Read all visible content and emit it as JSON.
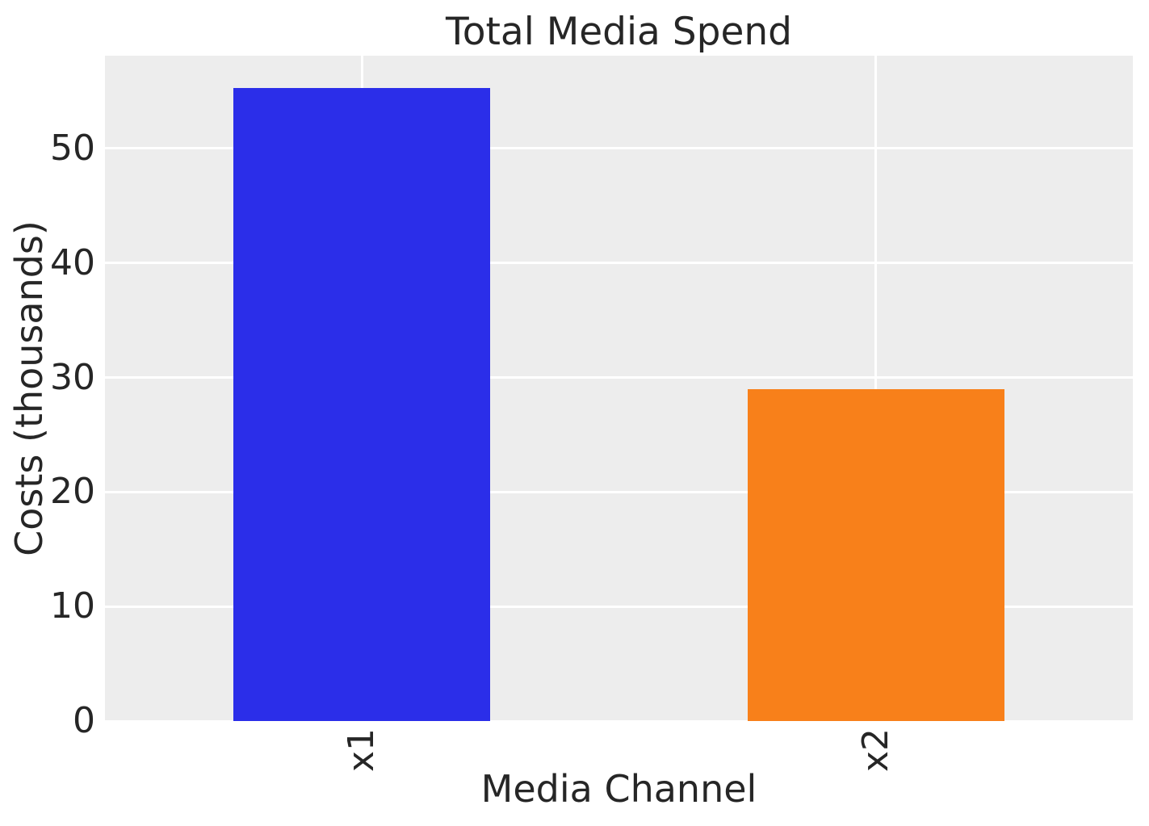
{
  "chart_data": {
    "type": "bar",
    "title": "Total Media Spend",
    "xlabel": "Media Channel",
    "ylabel": "Costs (thousands)",
    "categories": [
      "x1",
      "x2"
    ],
    "values": [
      55.3,
      29.0
    ],
    "ylim": [
      0,
      58.1
    ],
    "yticks": [
      0,
      10,
      20,
      30,
      40,
      50
    ],
    "bar_colors": [
      "#2b2ee9",
      "#f8801a"
    ],
    "xtick_rotation": 90,
    "grid": "on",
    "legend_position": "none",
    "plot_bg_color": "#ededed",
    "grid_color": "#ffffff",
    "text_color": "#262626"
  }
}
